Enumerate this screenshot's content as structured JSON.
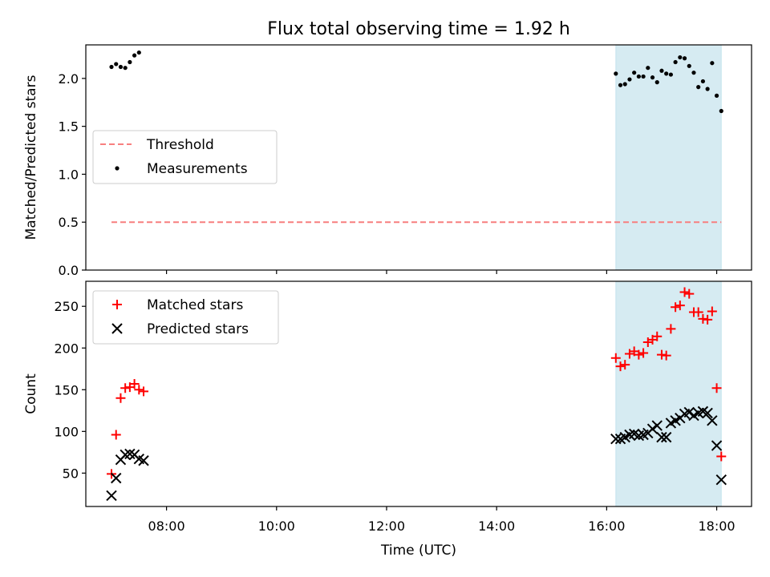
{
  "chart_data": [
    {
      "type": "scatter",
      "title": "Flux total observing time = 1.92 h",
      "ylabel": "Matched/Predicted stars",
      "xlabel": "",
      "xlim": [
        "06:32",
        "18:38"
      ],
      "ylim": [
        0,
        2.35
      ],
      "yticks": [
        0.0,
        0.5,
        1.0,
        1.5,
        2.0
      ],
      "ytick_labels": [
        "0.0",
        "0.5",
        "1.0",
        "1.5",
        "2.0"
      ],
      "xticks": [
        "08:00",
        "10:00",
        "12:00",
        "14:00",
        "16:00",
        "18:00"
      ],
      "grid": false,
      "legend": {
        "placement": "center-left",
        "entries": [
          "Threshold",
          "Measurements"
        ]
      },
      "highlight_span": {
        "x": [
          "16:10",
          "18:05"
        ],
        "color": "#add8e6"
      },
      "series": [
        {
          "name": "Threshold",
          "kind": "line",
          "style": "dashed",
          "color": "#f77f7f",
          "points": [
            [
              "07:00",
              0.5
            ],
            [
              "18:05",
              0.5
            ]
          ]
        },
        {
          "name": "Measurements",
          "kind": "scatter",
          "marker": "dot",
          "color": "#000000",
          "points": [
            [
              "07:00",
              2.12
            ],
            [
              "07:05",
              2.15
            ],
            [
              "07:10",
              2.12
            ],
            [
              "07:15",
              2.11
            ],
            [
              "07:20",
              2.17
            ],
            [
              "07:25",
              2.24
            ],
            [
              "07:30",
              2.27
            ],
            [
              "16:10",
              2.05
            ],
            [
              "16:15",
              1.93
            ],
            [
              "16:20",
              1.94
            ],
            [
              "16:25",
              1.99
            ],
            [
              "16:30",
              2.06
            ],
            [
              "16:35",
              2.02
            ],
            [
              "16:40",
              2.02
            ],
            [
              "16:45",
              2.11
            ],
            [
              "16:50",
              2.01
            ],
            [
              "16:55",
              1.96
            ],
            [
              "17:00",
              2.08
            ],
            [
              "17:05",
              2.05
            ],
            [
              "17:10",
              2.04
            ],
            [
              "17:15",
              2.17
            ],
            [
              "17:20",
              2.22
            ],
            [
              "17:25",
              2.21
            ],
            [
              "17:30",
              2.13
            ],
            [
              "17:35",
              2.06
            ],
            [
              "17:40",
              1.91
            ],
            [
              "17:45",
              1.97
            ],
            [
              "17:50",
              1.89
            ],
            [
              "17:55",
              2.16
            ],
            [
              "18:00",
              1.82
            ],
            [
              "18:05",
              1.66
            ]
          ]
        }
      ]
    },
    {
      "type": "scatter",
      "title": "",
      "ylabel": "Count",
      "xlabel": "Time (UTC)",
      "xlim": [
        "06:32",
        "18:38"
      ],
      "ylim": [
        10,
        280
      ],
      "yticks": [
        50,
        100,
        150,
        200,
        250
      ],
      "ytick_labels": [
        "50",
        "100",
        "150",
        "200",
        "250"
      ],
      "xticks": [
        "08:00",
        "10:00",
        "12:00",
        "14:00",
        "16:00",
        "18:00"
      ],
      "xtick_labels": [
        "08:00",
        "10:00",
        "12:00",
        "14:00",
        "16:00",
        "18:00"
      ],
      "grid": false,
      "legend": {
        "placement": "top-left",
        "entries": [
          "Matched stars",
          "Predicted stars"
        ]
      },
      "highlight_span": {
        "x": [
          "16:10",
          "18:05"
        ],
        "color": "#add8e6"
      },
      "series": [
        {
          "name": "Matched stars",
          "kind": "scatter",
          "marker": "plus",
          "color": "#ff0000",
          "points": [
            [
              "07:00",
              49
            ],
            [
              "07:05",
              96
            ],
            [
              "07:10",
              140
            ],
            [
              "07:15",
              152
            ],
            [
              "07:20",
              153
            ],
            [
              "07:25",
              157
            ],
            [
              "07:30",
              150
            ],
            [
              "07:35",
              148
            ],
            [
              "16:10",
              188
            ],
            [
              "16:15",
              178
            ],
            [
              "16:20",
              180
            ],
            [
              "16:25",
              193
            ],
            [
              "16:30",
              196
            ],
            [
              "16:35",
              192
            ],
            [
              "16:40",
              194
            ],
            [
              "16:45",
              207
            ],
            [
              "16:50",
              210
            ],
            [
              "16:55",
              214
            ],
            [
              "17:00",
              192
            ],
            [
              "17:05",
              191
            ],
            [
              "17:10",
              223
            ],
            [
              "17:15",
              249
            ],
            [
              "17:20",
              251
            ],
            [
              "17:25",
              267
            ],
            [
              "17:30",
              265
            ],
            [
              "17:35",
              243
            ],
            [
              "17:40",
              243
            ],
            [
              "17:45",
              235
            ],
            [
              "17:50",
              234
            ],
            [
              "17:55",
              244
            ],
            [
              "18:00",
              152
            ],
            [
              "18:05",
              70
            ]
          ]
        },
        {
          "name": "Predicted stars",
          "kind": "scatter",
          "marker": "x",
          "color": "#000000",
          "points": [
            [
              "07:00",
              23
            ],
            [
              "07:05",
              44
            ],
            [
              "07:10",
              66
            ],
            [
              "07:15",
              72
            ],
            [
              "07:20",
              73
            ],
            [
              "07:25",
              72
            ],
            [
              "07:30",
              67
            ],
            [
              "07:35",
              65
            ],
            [
              "16:10",
              91
            ],
            [
              "16:15",
              91
            ],
            [
              "16:20",
              93
            ],
            [
              "16:25",
              96
            ],
            [
              "16:30",
              97
            ],
            [
              "16:35",
              95
            ],
            [
              "16:40",
              96
            ],
            [
              "16:45",
              98
            ],
            [
              "16:50",
              103
            ],
            [
              "16:55",
              107
            ],
            [
              "17:00",
              93
            ],
            [
              "17:05",
              93
            ],
            [
              "17:10",
              110
            ],
            [
              "17:15",
              113
            ],
            [
              "17:20",
              116
            ],
            [
              "17:25",
              121
            ],
            [
              "17:30",
              123
            ],
            [
              "17:35",
              119
            ],
            [
              "17:40",
              122
            ],
            [
              "17:45",
              124
            ],
            [
              "17:50",
              122
            ],
            [
              "17:55",
              113
            ],
            [
              "18:00",
              83
            ],
            [
              "18:05",
              42
            ]
          ]
        }
      ]
    }
  ]
}
